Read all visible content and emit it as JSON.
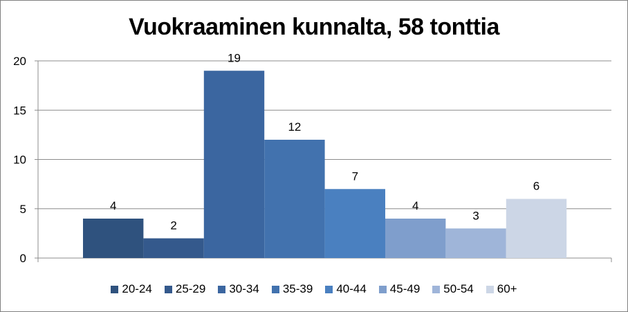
{
  "chart_data": {
    "type": "bar",
    "title": "Vuokraaminen kunnalta, 58 tonttia",
    "xlabel": "",
    "ylabel": "",
    "ylim": [
      0,
      20
    ],
    "yticks": [
      0,
      5,
      10,
      15,
      20
    ],
    "grid": true,
    "legend_position": "bottom",
    "series": [
      {
        "name": "20-24",
        "value": 4,
        "color": "#2f527e"
      },
      {
        "name": "25-29",
        "value": 2,
        "color": "#34598c"
      },
      {
        "name": "30-34",
        "value": 19,
        "color": "#3b66a0"
      },
      {
        "name": "35-39",
        "value": 12,
        "color": "#4272ae"
      },
      {
        "name": "40-44",
        "value": 7,
        "color": "#4a80c0"
      },
      {
        "name": "45-49",
        "value": 4,
        "color": "#7f9ecc"
      },
      {
        "name": "50-54",
        "value": 3,
        "color": "#9fb5d9"
      },
      {
        "name": "60+",
        "value": 6,
        "color": "#ccd6e6"
      }
    ]
  }
}
